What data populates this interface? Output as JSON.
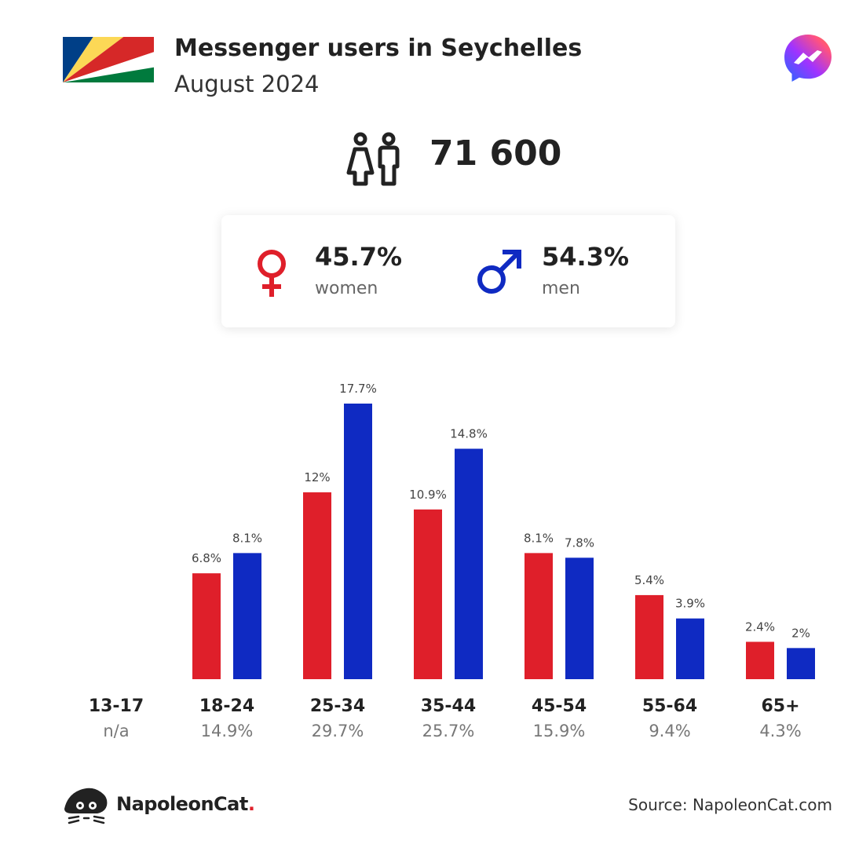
{
  "header": {
    "title": "Messenger users in Seychelles",
    "subtitle": "August 2024"
  },
  "total": {
    "value": "71 600"
  },
  "gender": {
    "women": {
      "pct": "45.7%",
      "label": "women",
      "color": "#df1f2a"
    },
    "men": {
      "pct": "54.3%",
      "label": "men",
      "color": "#0f2ac2"
    }
  },
  "icons": {
    "flag": "seychelles-flag-icon",
    "app": "messenger-icon",
    "people": "people-icon",
    "women": "female-symbol-icon",
    "men": "male-symbol-icon",
    "brand": "napoleoncat-logo-icon"
  },
  "chart_data": {
    "type": "bar",
    "categories": [
      "13-17",
      "18-24",
      "25-34",
      "35-44",
      "45-54",
      "55-64",
      "65+"
    ],
    "category_shares": [
      "n/a",
      "14.9%",
      "29.7%",
      "25.7%",
      "15.9%",
      "9.4%",
      "4.3%"
    ],
    "series": [
      {
        "name": "women",
        "color": "#df1f2a",
        "values": [
          null,
          6.8,
          12,
          10.9,
          8.1,
          5.4,
          2.4
        ],
        "labels": [
          "",
          "6.8%",
          "12%",
          "10.9%",
          "8.1%",
          "5.4%",
          "2.4%"
        ]
      },
      {
        "name": "men",
        "color": "#0f2ac2",
        "values": [
          null,
          8.1,
          17.7,
          14.8,
          7.8,
          3.9,
          2
        ],
        "labels": [
          "",
          "8.1%",
          "17.7%",
          "14.8%",
          "7.8%",
          "3.9%",
          "2%"
        ]
      }
    ],
    "ylim": [
      0,
      17.7
    ],
    "grid": false,
    "legend": "none"
  },
  "footer": {
    "brand_name": "NapoleonCat",
    "brand_dot": ".",
    "source": "Source: NapoleonCat.com"
  }
}
